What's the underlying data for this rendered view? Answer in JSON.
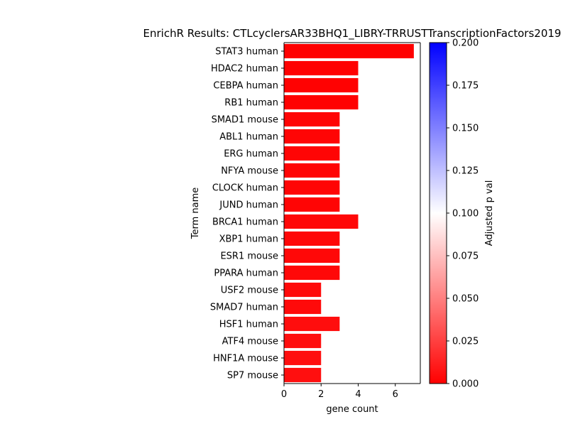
{
  "chart_data": {
    "type": "bar",
    "orientation": "horizontal",
    "title": "EnrichR Results: CTLcyclersAR33BHQ1_LIBRY-TRRUSTTranscriptionFactors2019",
    "xlabel": "gene count",
    "ylabel": "Term name",
    "xlim": [
      0,
      7.35
    ],
    "xticks": [
      0,
      2,
      4,
      6
    ],
    "grid": false,
    "categories": [
      "STAT3 human",
      "HDAC2 human",
      "CEBPA human",
      "RB1 human",
      "SMAD1 mouse",
      "ABL1 human",
      "ERG human",
      "NFYA mouse",
      "CLOCK human",
      "JUND human",
      "BRCA1 human",
      "XBP1 human",
      "ESR1 mouse",
      "PPARA human",
      "USF2 mouse",
      "SMAD7 human",
      "HSF1 human",
      "ATF4 mouse",
      "HNF1A mouse",
      "SP7 mouse"
    ],
    "values": [
      7,
      4,
      4,
      4,
      3,
      3,
      3,
      3,
      3,
      3,
      4,
      3,
      3,
      3,
      2,
      2,
      3,
      2,
      2,
      2
    ],
    "adjusted_p": [
      0.0003,
      0.0006,
      0.0006,
      0.0006,
      0.002,
      0.002,
      0.002,
      0.002,
      0.002,
      0.002,
      0.003,
      0.003,
      0.003,
      0.003,
      0.004,
      0.004,
      0.005,
      0.006,
      0.006,
      0.006
    ],
    "colorbar": {
      "label": "Adjusted p val",
      "range": [
        0.0,
        0.2
      ],
      "ticks": [
        "0.000",
        "0.025",
        "0.050",
        "0.075",
        "0.100",
        "0.125",
        "0.150",
        "0.175",
        "0.200"
      ],
      "colormap": [
        "#ff0000",
        "#ffffff",
        "#0000ff"
      ]
    }
  }
}
